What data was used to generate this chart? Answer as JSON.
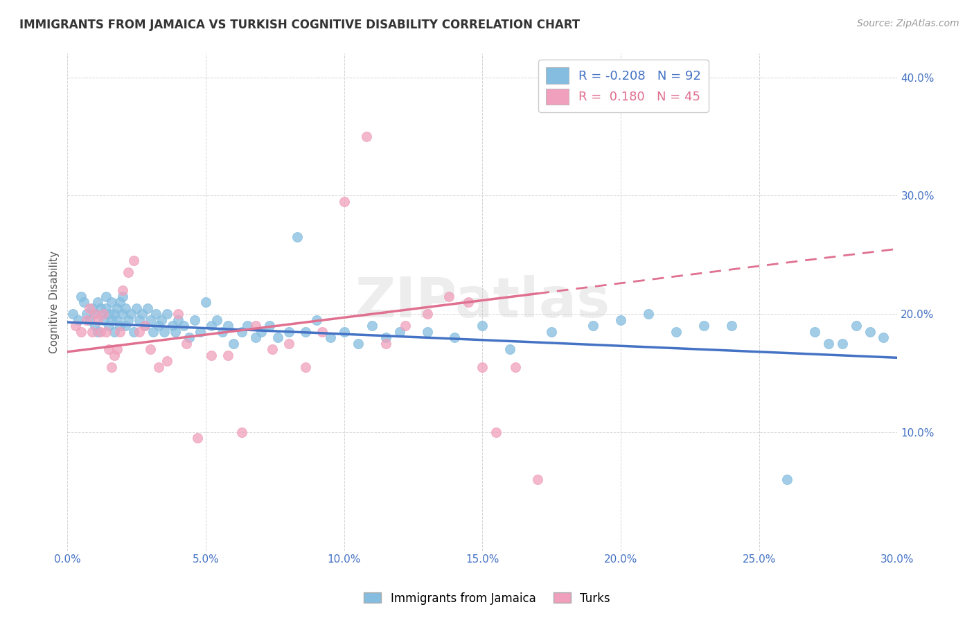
{
  "title": "IMMIGRANTS FROM JAMAICA VS TURKISH COGNITIVE DISABILITY CORRELATION CHART",
  "source": "Source: ZipAtlas.com",
  "ylabel_label": "Cognitive Disability",
  "legend_label1": "Immigrants from Jamaica",
  "legend_label2": "Turks",
  "R1": -0.208,
  "N1": 92,
  "R2": 0.18,
  "N2": 45,
  "xlim": [
    0.0,
    0.3
  ],
  "ylim": [
    0.0,
    0.42
  ],
  "xticks": [
    0.0,
    0.05,
    0.1,
    0.15,
    0.2,
    0.25,
    0.3
  ],
  "yticks": [
    0.1,
    0.2,
    0.3,
    0.4
  ],
  "ytick_labels": [
    "10.0%",
    "20.0%",
    "30.0%",
    "40.0%"
  ],
  "xtick_labels": [
    "0.0%",
    "5.0%",
    "10.0%",
    "15.0%",
    "20.0%",
    "25.0%",
    "30.0%"
  ],
  "color_blue": "#85bde0",
  "color_pink": "#f0a0bc",
  "line_color_blue": "#4472c4",
  "line_color_pink": "#e07090",
  "blue_x": [
    0.002,
    0.004,
    0.005,
    0.006,
    0.007,
    0.008,
    0.009,
    0.01,
    0.01,
    0.011,
    0.011,
    0.012,
    0.013,
    0.013,
    0.014,
    0.014,
    0.015,
    0.015,
    0.016,
    0.016,
    0.017,
    0.017,
    0.018,
    0.018,
    0.019,
    0.019,
    0.02,
    0.02,
    0.021,
    0.021,
    0.022,
    0.023,
    0.024,
    0.025,
    0.026,
    0.027,
    0.028,
    0.029,
    0.03,
    0.031,
    0.032,
    0.033,
    0.034,
    0.035,
    0.036,
    0.038,
    0.039,
    0.04,
    0.042,
    0.044,
    0.046,
    0.048,
    0.05,
    0.052,
    0.054,
    0.056,
    0.058,
    0.06,
    0.063,
    0.065,
    0.068,
    0.07,
    0.073,
    0.076,
    0.08,
    0.083,
    0.086,
    0.09,
    0.095,
    0.1,
    0.105,
    0.11,
    0.115,
    0.12,
    0.13,
    0.14,
    0.15,
    0.16,
    0.175,
    0.19,
    0.2,
    0.21,
    0.22,
    0.23,
    0.24,
    0.26,
    0.27,
    0.275,
    0.28,
    0.285,
    0.29,
    0.295
  ],
  "blue_y": [
    0.2,
    0.195,
    0.215,
    0.21,
    0.2,
    0.195,
    0.205,
    0.2,
    0.19,
    0.185,
    0.21,
    0.205,
    0.2,
    0.195,
    0.215,
    0.205,
    0.2,
    0.19,
    0.21,
    0.195,
    0.2,
    0.185,
    0.205,
    0.195,
    0.21,
    0.19,
    0.215,
    0.2,
    0.205,
    0.19,
    0.195,
    0.2,
    0.185,
    0.205,
    0.195,
    0.2,
    0.19,
    0.205,
    0.195,
    0.185,
    0.2,
    0.19,
    0.195,
    0.185,
    0.2,
    0.19,
    0.185,
    0.195,
    0.19,
    0.18,
    0.195,
    0.185,
    0.21,
    0.19,
    0.195,
    0.185,
    0.19,
    0.175,
    0.185,
    0.19,
    0.18,
    0.185,
    0.19,
    0.18,
    0.185,
    0.265,
    0.185,
    0.195,
    0.18,
    0.185,
    0.175,
    0.19,
    0.18,
    0.185,
    0.185,
    0.18,
    0.19,
    0.17,
    0.185,
    0.19,
    0.195,
    0.2,
    0.185,
    0.19,
    0.19,
    0.06,
    0.185,
    0.175,
    0.175,
    0.19,
    0.185,
    0.18
  ],
  "pink_x": [
    0.003,
    0.005,
    0.007,
    0.008,
    0.009,
    0.01,
    0.011,
    0.012,
    0.013,
    0.014,
    0.015,
    0.016,
    0.017,
    0.018,
    0.019,
    0.02,
    0.022,
    0.024,
    0.026,
    0.028,
    0.03,
    0.033,
    0.036,
    0.04,
    0.043,
    0.047,
    0.052,
    0.058,
    0.063,
    0.068,
    0.074,
    0.08,
    0.086,
    0.092,
    0.1,
    0.108,
    0.115,
    0.122,
    0.13,
    0.138,
    0.145,
    0.15,
    0.155,
    0.162,
    0.17
  ],
  "pink_y": [
    0.19,
    0.185,
    0.195,
    0.205,
    0.185,
    0.2,
    0.195,
    0.185,
    0.2,
    0.185,
    0.17,
    0.155,
    0.165,
    0.17,
    0.185,
    0.22,
    0.235,
    0.245,
    0.185,
    0.19,
    0.17,
    0.155,
    0.16,
    0.2,
    0.175,
    0.095,
    0.165,
    0.165,
    0.1,
    0.19,
    0.17,
    0.175,
    0.155,
    0.185,
    0.295,
    0.35,
    0.175,
    0.19,
    0.2,
    0.215,
    0.21,
    0.155,
    0.1,
    0.155,
    0.06
  ],
  "watermark": "ZIPatlas",
  "background_color": "#ffffff",
  "grid_color": "#d0d0d0",
  "blue_line_y_start": 0.193,
  "blue_line_y_end": 0.163,
  "pink_line_y_start": 0.168,
  "pink_line_y_end": 0.255
}
